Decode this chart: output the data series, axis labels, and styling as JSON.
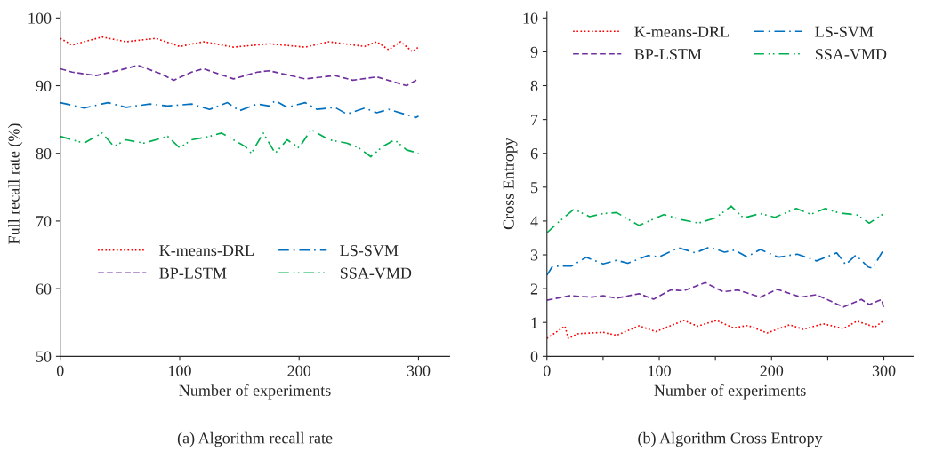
{
  "chart_data": [
    {
      "type": "line",
      "title": "(a) Algorithm recall rate",
      "xlabel": "Number of experiments",
      "ylabel": "Full recall rate (%)",
      "xlim": [
        0,
        326
      ],
      "ylim": [
        50,
        101
      ],
      "xticks": [
        0,
        100,
        200,
        300
      ],
      "yticks": [
        50,
        60,
        70,
        80,
        90,
        100
      ],
      "grid": false,
      "legend": "center",
      "marker": "none",
      "series": [
        {
          "name": "K-means-DRL",
          "color": "#ff0000",
          "line_style": "dotted",
          "x": [
            0,
            10,
            20,
            35,
            55,
            80,
            100,
            120,
            145,
            175,
            205,
            225,
            255,
            265,
            275,
            285,
            295,
            300
          ],
          "values": [
            97,
            96,
            96.5,
            97.2,
            96.5,
            97,
            95.8,
            96.5,
            95.7,
            96.2,
            95.7,
            96.5,
            95.8,
            96.5,
            95.3,
            96.5,
            95,
            95.7
          ]
        },
        {
          "name": "BP-LSTM",
          "color": "#7030a0",
          "line_style": "dashed",
          "x": [
            0,
            10,
            30,
            50,
            65,
            85,
            95,
            110,
            120,
            145,
            165,
            175,
            205,
            230,
            245,
            265,
            290,
            300
          ],
          "values": [
            92.5,
            92,
            91.5,
            92.3,
            93,
            91.7,
            90.8,
            92,
            92.5,
            91,
            92,
            92.2,
            91,
            91.5,
            90.8,
            91.3,
            90,
            91
          ]
        },
        {
          "name": "LS-SVM",
          "color": "#0070c0",
          "line_style": "dashdot",
          "x": [
            0,
            20,
            40,
            55,
            75,
            90,
            110,
            125,
            140,
            150,
            165,
            175,
            180,
            190,
            205,
            215,
            230,
            240,
            255,
            265,
            275,
            290,
            298,
            300
          ],
          "values": [
            87.5,
            86.7,
            87.5,
            86.8,
            87.3,
            87,
            87.3,
            86.5,
            87.5,
            86.3,
            87.3,
            87,
            87.8,
            86.8,
            87.5,
            86.5,
            86.8,
            85.8,
            86.7,
            86,
            86.5,
            85.7,
            85.3,
            85.5
          ]
        },
        {
          "name": "SSA-VMD",
          "color": "#00b050",
          "line_style": "dashdotdot",
          "x": [
            0,
            20,
            35,
            45,
            55,
            70,
            90,
            100,
            110,
            125,
            135,
            155,
            160,
            170,
            180,
            190,
            200,
            210,
            225,
            240,
            250,
            260,
            270,
            280,
            290,
            300
          ],
          "values": [
            82.5,
            81.5,
            83,
            81,
            82,
            81.5,
            82.5,
            80.8,
            82,
            82.5,
            83,
            81,
            80,
            83,
            80,
            82,
            80.8,
            83.5,
            82,
            81.5,
            80.8,
            79.5,
            81,
            82,
            80.5,
            80
          ]
        }
      ]
    },
    {
      "type": "line",
      "title": "(b) Algorithm Cross Entropy",
      "xlabel": "Number of experiments",
      "ylabel": "Cross Entropy",
      "xlim": [
        0,
        326
      ],
      "ylim": [
        0,
        10.2
      ],
      "xticks": [
        0,
        {
          "value": 50,
          "label": null
        },
        100,
        {
          "value": 150,
          "label": null
        },
        200,
        {
          "value": 250,
          "label": null
        },
        300
      ],
      "yticks": [
        0,
        1,
        2,
        3,
        4,
        5,
        6,
        7,
        8,
        9,
        10
      ],
      "grid": false,
      "legend": "top",
      "marker": "none",
      "series": [
        {
          "name": "K-means-DRL",
          "color": "#ff0000",
          "line_style": "dotted",
          "x": [
            0,
            16,
            19,
            28,
            50,
            62,
            82,
            97,
            122,
            134,
            151,
            166,
            179,
            196,
            216,
            228,
            246,
            264,
            276,
            292,
            300
          ],
          "values": [
            0.53,
            0.89,
            0.53,
            0.67,
            0.71,
            0.62,
            0.9,
            0.73,
            1.06,
            0.89,
            1.06,
            0.84,
            0.91,
            0.69,
            0.93,
            0.8,
            0.96,
            0.82,
            1.04,
            0.86,
            1.06
          ]
        },
        {
          "name": "BP-LSTM",
          "color": "#7030a0",
          "line_style": "dashed",
          "x": [
            0,
            20,
            40,
            50,
            62,
            82,
            95,
            110,
            122,
            141,
            157,
            170,
            190,
            205,
            226,
            240,
            264,
            280,
            287,
            298,
            300
          ],
          "values": [
            1.66,
            1.79,
            1.75,
            1.79,
            1.72,
            1.85,
            1.69,
            1.96,
            1.94,
            2.18,
            1.91,
            1.96,
            1.75,
            1.98,
            1.75,
            1.82,
            1.46,
            1.68,
            1.53,
            1.68,
            1.41
          ]
        },
        {
          "name": "LS-SVM",
          "color": "#0070c0",
          "line_style": "dashdot",
          "x": [
            0,
            5,
            22,
            35,
            50,
            62,
            72,
            90,
            100,
            117,
            132,
            145,
            158,
            167,
            178,
            190,
            206,
            223,
            240,
            258,
            266,
            275,
            286,
            290,
            300
          ],
          "values": [
            2.4,
            2.66,
            2.67,
            2.93,
            2.73,
            2.84,
            2.75,
            2.98,
            2.94,
            3.21,
            3.06,
            3.23,
            3.08,
            3.14,
            2.94,
            3.16,
            2.93,
            3.02,
            2.82,
            3.06,
            2.71,
            2.99,
            2.64,
            2.6,
            3.17
          ]
        },
        {
          "name": "SSA-VMD",
          "color": "#00b050",
          "line_style": "dashdotdot",
          "x": [
            0,
            10,
            24,
            38,
            50,
            62,
            82,
            104,
            120,
            135,
            150,
            164,
            175,
            190,
            203,
            222,
            235,
            248,
            260,
            276,
            287,
            300
          ],
          "values": [
            3.65,
            3.96,
            4.35,
            4.13,
            4.22,
            4.25,
            3.87,
            4.19,
            4.04,
            3.94,
            4.09,
            4.44,
            4.09,
            4.22,
            4.11,
            4.37,
            4.2,
            4.37,
            4.24,
            4.18,
            3.94,
            4.22
          ]
        }
      ]
    }
  ]
}
